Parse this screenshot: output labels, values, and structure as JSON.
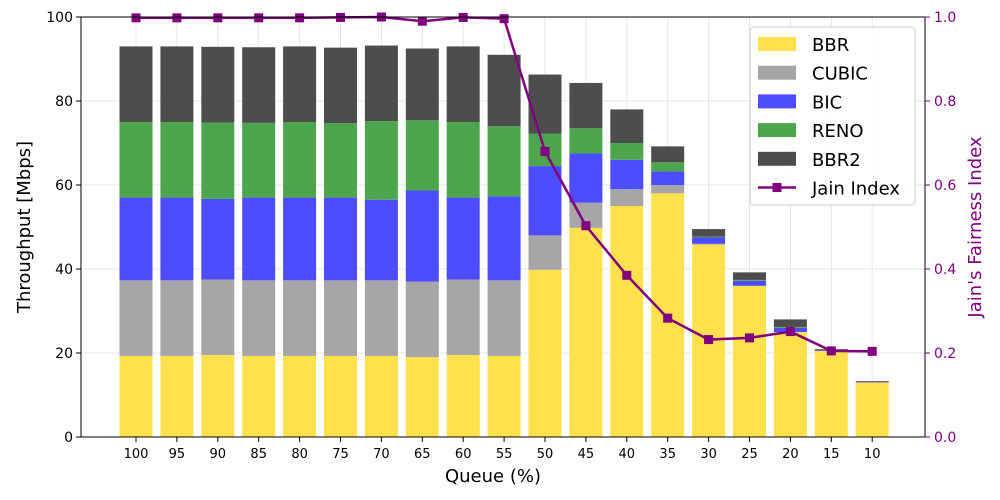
{
  "chart_data": {
    "type": "bar",
    "stacked": true,
    "categories": [
      "100",
      "95",
      "90",
      "85",
      "80",
      "75",
      "70",
      "65",
      "60",
      "55",
      "50",
      "45",
      "40",
      "35",
      "30",
      "25",
      "20",
      "15",
      "10"
    ],
    "series": [
      {
        "name": "BBR",
        "color": "#ffe14d",
        "values": [
          19.3,
          19.3,
          19.5,
          19.3,
          19.3,
          19.3,
          19.3,
          19.0,
          19.5,
          19.3,
          39.8,
          49.8,
          55.0,
          58.0,
          45.8,
          36.0,
          25.0,
          20.5,
          13.0
        ]
      },
      {
        "name": "CUBIC",
        "color": "#a6a6a6",
        "values": [
          18.0,
          18.0,
          18.0,
          18.0,
          18.0,
          18.0,
          18.0,
          18.0,
          18.0,
          18.0,
          8.2,
          6.0,
          4.0,
          2.0,
          0.2,
          0.0,
          0.0,
          0.0,
          0.0
        ]
      },
      {
        "name": "BIC",
        "color": "#4d4dff",
        "values": [
          19.7,
          19.7,
          19.2,
          19.7,
          19.7,
          19.7,
          19.2,
          21.7,
          19.5,
          20.0,
          16.5,
          11.7,
          7.0,
          3.2,
          1.5,
          1.2,
          1.0,
          0.2,
          0.1
        ]
      },
      {
        "name": "RENO",
        "color": "#4da64d",
        "values": [
          18.0,
          18.0,
          18.2,
          17.8,
          18.0,
          17.7,
          18.7,
          16.7,
          18.0,
          16.7,
          7.7,
          6.0,
          4.0,
          2.2,
          0.2,
          0.2,
          0.2,
          0.0,
          0.0
        ]
      },
      {
        "name": "BBR2",
        "color": "#4d4d4d",
        "values": [
          18.0,
          18.0,
          18.0,
          18.0,
          18.0,
          18.0,
          18.0,
          17.1,
          18.0,
          17.0,
          14.1,
          10.8,
          8.0,
          3.8,
          1.8,
          1.8,
          1.8,
          0.2,
          0.2
        ]
      }
    ],
    "line_series": {
      "name": "Jain Index",
      "color": "#800080",
      "axis": "right",
      "values": [
        0.998,
        0.998,
        0.998,
        0.998,
        0.998,
        0.999,
        1.0,
        0.99,
        0.999,
        0.996,
        0.68,
        0.503,
        0.385,
        0.283,
        0.232,
        0.236,
        0.251,
        0.205,
        0.204
      ]
    },
    "xlabel": "Queue (%)",
    "ylabel": "Throughput [Mbps]",
    "ylabel_right": "Jain's Fairness Index",
    "ylim": [
      0,
      100
    ],
    "ylim_right": [
      0,
      1.0
    ],
    "yticks": [
      "0",
      "20",
      "40",
      "60",
      "80",
      "100"
    ],
    "yticks_right": [
      "0.0",
      "0.2",
      "0.4",
      "0.6",
      "0.8",
      "1.0"
    ],
    "grid": true,
    "legend": "top-right",
    "legend_labels": [
      "BBR",
      "CUBIC",
      "BIC",
      "RENO",
      "BBR2",
      "Jain Index"
    ]
  }
}
